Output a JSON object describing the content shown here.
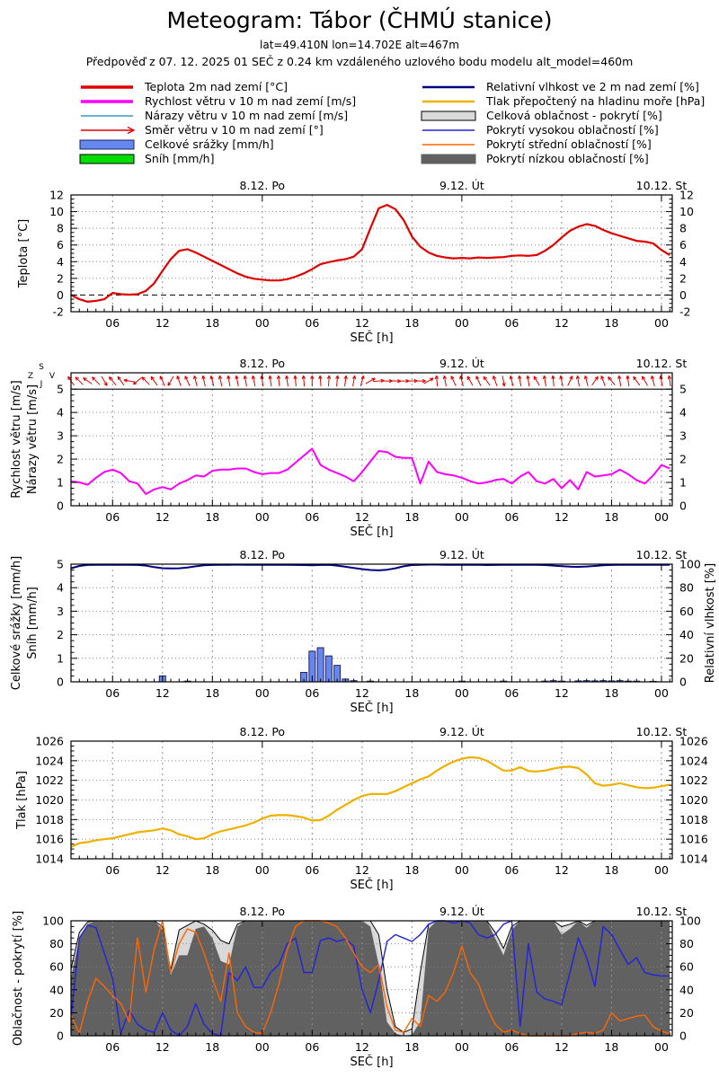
{
  "header": {
    "title": "Meteogram: Tábor (ČHMÚ stanice)",
    "subtitle1": "lat=49.410N lon=14.702E alt=467m",
    "subtitle2": "Předpověď z 07. 12. 2025 01 SEČ z 0.24 km vzdáleného uzlového bodu modelu alt_model=460m"
  },
  "legend": {
    "left": [
      {
        "label": "Teplota 2m nad zemí [°C]",
        "kind": "thick",
        "color": "#e00000"
      },
      {
        "label": "Rychlost větru v 10 m nad zemí [m/s]",
        "kind": "thick",
        "color": "#ff00ff"
      },
      {
        "label": "Nárazy větru v 10 m nad zemí [m/s]",
        "kind": "thin",
        "color": "#3399cc"
      },
      {
        "label": "Směr větru v 10 m nad zemí [°]",
        "kind": "arrow",
        "color": "#e00000"
      },
      {
        "label": "Celkové srážky [mm/h]",
        "kind": "box",
        "color": "#6688ee",
        "border": "#202060"
      },
      {
        "label": "Sníh [mm/h]",
        "kind": "box",
        "color": "#00dd00",
        "border": "#000000"
      }
    ],
    "right": [
      {
        "label": "Relativní vlhkost ve 2 m nad zemí [%]",
        "kind": "line",
        "color": "#000080"
      },
      {
        "label": "Tlak přepočtený na hladinu moře [hPa]",
        "kind": "line",
        "color": "#f0b000"
      },
      {
        "label": "Celková oblačnost - pokrytí [%]",
        "kind": "box",
        "color": "#d9d9d9",
        "border": "#000000"
      },
      {
        "label": "Pokrytí vysokou oblačností [%]",
        "kind": "thin",
        "color": "#2222dd"
      },
      {
        "label": "Pokrytí střední oblačností [%]",
        "kind": "thin",
        "color": "#ff6600"
      },
      {
        "label": "Pokrytí nízkou oblačností [%]",
        "kind": "box",
        "color": "#616161",
        "border": "#616161"
      }
    ]
  },
  "axis": {
    "xlabel": "SEČ [h]",
    "start_label": "01 SEČ",
    "hour_tick_t": [
      5,
      11,
      17,
      23,
      29,
      35,
      41,
      47,
      53,
      59,
      65,
      71
    ],
    "hour_tick_labels": [
      "06",
      "12",
      "18",
      "00",
      "06",
      "12",
      "18",
      "00",
      "06",
      "12",
      "18",
      "00"
    ],
    "day_labels": [
      {
        "label": "8.12. Po",
        "t": 23
      },
      {
        "label": "9.12. Út",
        "t": 47
      },
      {
        "label": "10.12. St",
        "t": 71
      }
    ],
    "compass": {
      "top": "S",
      "bottom": "J",
      "left": "Z",
      "right": "V"
    }
  },
  "chart_data": [
    {
      "type": "line",
      "id": "temperature",
      "ylabel": [
        "Teplota [°C]"
      ],
      "ylim": [
        -2,
        12
      ],
      "yticks": [
        -2,
        0,
        2,
        4,
        6,
        8,
        10,
        12
      ],
      "grid": [
        2,
        4,
        6,
        8,
        10
      ],
      "zero_line": 0,
      "series": [
        {
          "name": "Teplota 2m nad zemí [°C]",
          "dname": "temperature-line",
          "color": "#e00000",
          "width": 2.2,
          "values": [
            0,
            -0.5,
            -0.8,
            -0.7,
            -0.5,
            0.25,
            0.1,
            0.05,
            0.1,
            0.5,
            1.4,
            2.9,
            4.3,
            5.3,
            5.5,
            5.1,
            4.6,
            4.1,
            3.6,
            3.1,
            2.6,
            2.2,
            1.95,
            1.85,
            1.75,
            1.75,
            1.9,
            2.2,
            2.6,
            3.1,
            3.7,
            3.95,
            4.15,
            4.3,
            4.6,
            5.5,
            8.0,
            10.4,
            10.8,
            10.3,
            9.0,
            7.0,
            5.8,
            5.1,
            4.7,
            4.5,
            4.4,
            4.45,
            4.4,
            4.5,
            4.45,
            4.5,
            4.55,
            4.7,
            4.75,
            4.7,
            4.8,
            5.3,
            6.0,
            6.9,
            7.7,
            8.2,
            8.5,
            8.3,
            7.8,
            7.4,
            7.1,
            6.8,
            6.5,
            6.4,
            6.2,
            5.4,
            4.8
          ]
        }
      ]
    },
    {
      "type": "line+arrows",
      "id": "wind",
      "ylabel": [
        "Rychlost větru [m/s]",
        "Nárazy větru [m/s]"
      ],
      "ylim": [
        0,
        5
      ],
      "yticks": [
        0,
        1,
        2,
        3,
        4,
        5
      ],
      "grid": [
        1,
        2,
        3,
        4
      ],
      "solid_line": 5,
      "series": [
        {
          "name": "Rychlost větru v 10 m nad zemí [m/s]",
          "dname": "wind-speed-line",
          "color": "#ff00ff",
          "width": 2,
          "values": [
            1.05,
            1,
            0.9,
            1.2,
            1.45,
            1.55,
            1.4,
            1.05,
            0.95,
            0.5,
            0.7,
            0.8,
            0.7,
            0.95,
            1.1,
            1.3,
            1.25,
            1.5,
            1.55,
            1.55,
            1.6,
            1.6,
            1.45,
            1.35,
            1.4,
            1.4,
            1.55,
            1.85,
            2.15,
            2.45,
            1.75,
            1.55,
            1.4,
            1.25,
            1.05,
            1.45,
            1.9,
            2.35,
            2.3,
            2.1,
            2.05,
            2.05,
            0.95,
            1.9,
            1.45,
            1.35,
            1.3,
            1.2,
            1.05,
            0.95,
            1,
            1.1,
            1.15,
            0.95,
            1.25,
            1.45,
            1.05,
            0.95,
            1.15,
            0.75,
            1.1,
            0.7,
            1.45,
            1.25,
            1.3,
            1.35,
            1.55,
            1.35,
            1.1,
            0.95,
            1.3,
            1.75,
            1.6
          ]
        }
      ],
      "arrows": {
        "name": "Směr větru v 10 m nad zemí [°]",
        "color": "#e00000",
        "angles_deg_from_north": [
          -35,
          -45,
          -55,
          -45,
          150,
          -40,
          -35,
          -80,
          -130,
          -45,
          -35,
          -25,
          -150,
          -20,
          -25,
          -15,
          -12,
          -15,
          -12,
          -10,
          -12,
          -10,
          -12,
          -8,
          -8,
          -6,
          -8,
          -5,
          -5,
          0,
          -5,
          3,
          5,
          8,
          10,
          15,
          60,
          85,
          90,
          92,
          90,
          88,
          90,
          60,
          -5,
          -10,
          -25,
          -15,
          -30,
          -25,
          -35,
          -20,
          170,
          -15,
          -10,
          -8,
          -30,
          -10,
          -5,
          -12,
          25,
          -10,
          -15,
          35,
          -20,
          -40,
          -10,
          -8,
          -35,
          -30,
          -15,
          -10,
          -8
        ]
      }
    },
    {
      "type": "bars+line",
      "id": "precipitation-humidity",
      "ylabel": [
        "Celkové srážky [mm/h]",
        "Sníh [mm/h]"
      ],
      "ylim": [
        0,
        5
      ],
      "yticks": [
        0,
        1,
        2,
        3,
        4,
        5
      ],
      "grid": [
        1,
        2,
        3,
        4
      ],
      "y2label": "Relativní vlhkost [%]",
      "y2lim": [
        0,
        100
      ],
      "y2ticks": [
        0,
        20,
        40,
        60,
        80,
        100
      ],
      "bars": {
        "name": "Celkové srážky [mm/h]",
        "dname": "precipitation-bars",
        "fill": "#6688ee",
        "stroke": "#202060",
        "values": [
          0,
          0,
          0,
          0,
          0,
          0,
          0,
          0,
          0,
          0,
          0,
          0.25,
          0,
          0,
          0.03,
          0,
          0,
          0,
          0,
          0,
          0,
          0,
          0,
          0,
          0,
          0,
          0,
          0,
          0.4,
          1.3,
          1.45,
          1.1,
          0.7,
          0.12,
          0.05,
          0,
          0.03,
          0,
          0,
          0,
          0,
          0,
          0,
          0,
          0,
          0,
          0,
          0.03,
          0,
          0,
          0,
          0,
          0.03,
          0,
          0,
          0,
          0,
          0.03,
          0.05,
          0.03,
          0,
          0.04,
          0.05,
          0.04,
          0.05,
          0.04,
          0.05,
          0.03,
          0.03,
          0,
          0.02,
          0,
          0
        ]
      },
      "series": [
        {
          "name": "Relativní vlhkost ve 2 m nad zemí [%]",
          "dname": "humidity-line",
          "color": "#000080",
          "width": 2,
          "axis": "y2",
          "values": [
            96.5,
            98.5,
            99.3,
            99.4,
            99.4,
            99.4,
            99.4,
            99.4,
            99.3,
            98.8,
            97.5,
            96.6,
            96.3,
            96.5,
            97.2,
            98.2,
            99,
            99.3,
            99.4,
            99.5,
            99.6,
            99.5,
            99.4,
            99.4,
            99.4,
            99.4,
            99.4,
            99.3,
            99.2,
            99.1,
            99.3,
            99.4,
            98.8,
            97.8,
            96.8,
            95.8,
            95,
            94.7,
            95.3,
            96.5,
            98.2,
            99.2,
            99.5,
            99.6,
            99.6,
            99.5,
            99.4,
            99.4,
            99.5,
            99.4,
            99.2,
            99.3,
            99.4,
            99.4,
            99.5,
            99.4,
            99.4,
            99.2,
            98.8,
            98.3,
            97.9,
            97.7,
            98,
            98.5,
            99,
            99.3,
            99.5,
            99.5,
            99.5,
            99.4,
            99.5,
            99.5,
            99.5
          ]
        }
      ]
    },
    {
      "type": "line",
      "id": "pressure",
      "ylabel": [
        "Tlak [hPa]"
      ],
      "ylim": [
        1014,
        1026
      ],
      "yticks": [
        1014,
        1016,
        1018,
        1020,
        1022,
        1024,
        1026
      ],
      "grid": [
        1016,
        1018,
        1020,
        1022,
        1024
      ],
      "series": [
        {
          "name": "Tlak přepočtený na hladinu moře [hPa]",
          "dname": "pressure-line",
          "color": "#f0b000",
          "width": 2.2,
          "values": [
            1015.2,
            1015.6,
            1015.7,
            1015.9,
            1016,
            1016.1,
            1016.3,
            1016.5,
            1016.7,
            1016.8,
            1016.9,
            1017.1,
            1016.9,
            1016.5,
            1016.3,
            1016,
            1016.1,
            1016.5,
            1016.8,
            1017,
            1017.2,
            1017.4,
            1017.7,
            1018.1,
            1018.4,
            1018.45,
            1018.45,
            1018.35,
            1018.2,
            1017.9,
            1017.95,
            1018.4,
            1019,
            1019.5,
            1020,
            1020.4,
            1020.6,
            1020.6,
            1020.6,
            1020.9,
            1021.3,
            1021.7,
            1022.1,
            1022.4,
            1023,
            1023.5,
            1023.9,
            1024.2,
            1024.35,
            1024.3,
            1024,
            1023.5,
            1023,
            1023,
            1023.35,
            1022.95,
            1022.9,
            1023,
            1023.2,
            1023.35,
            1023.4,
            1023.25,
            1022.6,
            1021.7,
            1021.45,
            1021.55,
            1021.7,
            1021.5,
            1021.3,
            1021.2,
            1021.25,
            1021.4,
            1021.55
          ]
        }
      ]
    },
    {
      "type": "clouds",
      "id": "cloudiness",
      "ylabel": [
        "Oblačnost - pokrytí [%]"
      ],
      "ylim": [
        0,
        100
      ],
      "yticks": [
        0,
        20,
        40,
        60,
        80,
        100
      ],
      "grid": [
        20,
        40,
        60,
        80
      ],
      "areas": [
        {
          "name": "Celková oblačnost - pokrytí [%]",
          "dname": "total-cloud-area",
          "fill": "#d9d9d9",
          "line": "#000000",
          "values": [
            58,
            90,
            99,
            100,
            100,
            100,
            100,
            100,
            100,
            100,
            100,
            95,
            57,
            92,
            96,
            100,
            97,
            92,
            83,
            80,
            97,
            100,
            100,
            100,
            100,
            100,
            100,
            100,
            100,
            100,
            100,
            100,
            100,
            100,
            100,
            100,
            100,
            88,
            40,
            8,
            3,
            6,
            55,
            97,
            100,
            100,
            100,
            100,
            100,
            100,
            100,
            90,
            76,
            95,
            100,
            100,
            100,
            100,
            100,
            95,
            97,
            100,
            96,
            100,
            100,
            100,
            100,
            100,
            100,
            100,
            100,
            100,
            100
          ]
        },
        {
          "name": "Pokrytí nízkou oblačností [%]",
          "dname": "low-cloud-area",
          "fill": "#616161",
          "values": [
            50,
            85,
            97,
            100,
            100,
            100,
            100,
            100,
            100,
            100,
            100,
            92,
            53,
            70,
            70,
            93,
            95,
            85,
            65,
            62,
            95,
            100,
            100,
            100,
            100,
            100,
            100,
            100,
            100,
            100,
            100,
            100,
            100,
            100,
            100,
            100,
            95,
            62,
            12,
            2,
            0,
            1,
            12,
            93,
            100,
            100,
            100,
            100,
            100,
            100,
            100,
            85,
            70,
            92,
            100,
            100,
            100,
            100,
            100,
            88,
            93,
            100,
            94,
            100,
            100,
            100,
            100,
            100,
            100,
            100,
            100,
            100,
            100
          ]
        }
      ],
      "series": [
        {
          "name": "Pokrytí vysokou oblačností [%]",
          "dname": "high-cloud-line",
          "color": "#2222dd",
          "width": 1.4,
          "values": [
            15,
            85,
            96,
            94,
            72,
            50,
            2,
            22,
            10,
            5,
            3,
            20,
            5,
            0,
            8,
            28,
            10,
            2,
            0,
            55,
            48,
            60,
            42,
            42,
            55,
            62,
            80,
            85,
            55,
            55,
            83,
            85,
            82,
            84,
            78,
            40,
            20,
            48,
            82,
            88,
            85,
            82,
            88,
            97,
            100,
            100,
            98,
            100,
            98,
            88,
            85,
            88,
            97,
            100,
            8,
            80,
            38,
            32,
            30,
            27,
            55,
            85,
            68,
            43,
            95,
            88,
            75,
            62,
            68,
            55,
            53,
            52,
            52
          ]
        },
        {
          "name": "Pokrytí střední oblačností [%]",
          "dname": "mid-cloud-line",
          "color": "#ff6600",
          "width": 1.4,
          "values": [
            18,
            2,
            30,
            50,
            43,
            35,
            28,
            12,
            85,
            38,
            75,
            100,
            55,
            80,
            93,
            90,
            72,
            50,
            30,
            72,
            20,
            8,
            3,
            2,
            20,
            45,
            75,
            95,
            100,
            100,
            100,
            98,
            95,
            85,
            72,
            60,
            55,
            62,
            25,
            5,
            3,
            15,
            8,
            35,
            30,
            38,
            55,
            78,
            55,
            45,
            25,
            10,
            3,
            5,
            2,
            0,
            0,
            0,
            0,
            0,
            0,
            2,
            3,
            2,
            5,
            20,
            13,
            15,
            17,
            18,
            8,
            4,
            2
          ]
        }
      ]
    }
  ]
}
